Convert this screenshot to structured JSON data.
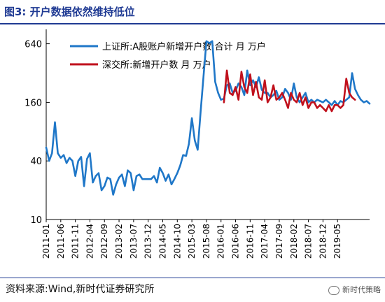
{
  "figure_title": "图3:  开户数据依然维持低位",
  "source_text": "资料来源:Wind,新时代证券研究所",
  "watermark_text": "新时代策略",
  "chart_data": {
    "type": "line",
    "title": "",
    "xlabel": "",
    "ylabel": "",
    "y_scale": "log",
    "ylim": [
      10,
      900
    ],
    "yticks": [
      10,
      40,
      160,
      640
    ],
    "ytick_labels": [
      "10",
      "40",
      "160",
      "640"
    ],
    "grid": false,
    "legend_position": "top",
    "x_tick_labels": [
      "2011-01",
      "2011-06",
      "2011-11",
      "2012-04",
      "2012-09",
      "2013-02",
      "2013-07",
      "2013-12",
      "2014-05",
      "2014-10",
      "2015-03",
      "2015-08",
      "2016-01",
      "2016-06",
      "2016-11",
      "2017-04",
      "2017-09",
      "2018-02",
      "2018-07",
      "2018-12",
      "2019-05"
    ],
    "series": [
      {
        "name": "上证所:A股账户新增开户数:合计  月  万户",
        "color": "#1f77c8",
        "start_index": 0,
        "values": [
          55,
          40,
          48,
          100,
          48,
          43,
          46,
          38,
          43,
          40,
          28,
          40,
          44,
          22,
          42,
          48,
          24,
          28,
          30,
          20,
          22,
          27,
          26,
          18,
          23,
          27,
          29,
          22,
          32,
          30,
          20,
          28,
          29,
          26,
          26,
          26,
          26,
          28,
          24,
          34,
          30,
          25,
          29,
          23,
          26,
          30,
          36,
          46,
          45,
          60,
          110,
          65,
          52,
          128,
          300,
          680,
          650,
          680,
          260,
          200,
          170,
          175,
          240,
          250,
          200,
          210,
          250,
          230,
          190,
          340,
          240,
          270,
          230,
          290,
          215,
          200,
          200,
          180,
          190,
          210,
          170,
          180,
          220,
          200,
          170,
          250,
          180,
          160,
          180,
          200,
          160,
          170,
          160,
          170,
          165,
          160,
          170,
          160,
          150,
          165,
          150,
          165,
          160,
          170,
          180,
          320,
          220,
          190,
          170,
          160,
          165,
          155
        ]
      },
      {
        "name": "深交所:新增开户数  月  万户",
        "color": "#c0101c",
        "start_index": 61,
        "values": [
          160,
          340,
          200,
          190,
          230,
          170,
          330,
          230,
          200,
          310,
          190,
          260,
          180,
          170,
          270,
          160,
          180,
          240,
          170,
          180,
          200,
          170,
          140,
          200,
          170,
          160,
          200,
          150,
          180,
          140,
          160,
          160,
          140,
          150,
          140,
          130,
          150,
          130,
          150,
          150,
          140,
          150,
          280,
          200,
          180,
          170
        ]
      }
    ]
  }
}
